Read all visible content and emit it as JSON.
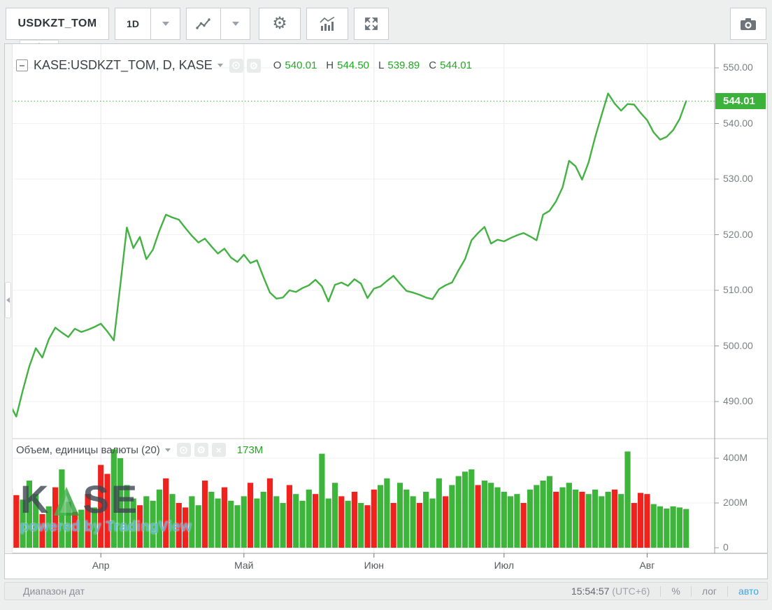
{
  "toolbar": {
    "symbol": "USDKZT_TOM",
    "interval": "1D"
  },
  "main_legend": {
    "title": "KASE:USDKZT_TOM, D, KASE",
    "ohlc": [
      {
        "k": "O",
        "v": "540.01"
      },
      {
        "k": "H",
        "v": "544.50"
      },
      {
        "k": "L",
        "v": "539.89"
      },
      {
        "k": "C",
        "v": "544.01"
      }
    ]
  },
  "volume_legend": {
    "title": "Объем, единицы валюты (20)",
    "current": "173M"
  },
  "watermark": {
    "brand_k": "K",
    "brand_se": "SE",
    "powered": "powered by TradingView"
  },
  "price_axis_last": "544.01",
  "status_bar": {
    "range_label": "Диапазон дат",
    "clock": "15:54:57",
    "utc": "(UTC+6)",
    "percent": "%",
    "log": "лог",
    "auto": "авто"
  },
  "chart_data": {
    "type": "line",
    "symbol": "KASE:USDKZT_TOM",
    "timeframe": "D",
    "exchange": "KASE",
    "title": "KASE:USDKZT_TOM, D, KASE",
    "ohlc": {
      "open": 540.01,
      "high": 544.5,
      "low": 539.89,
      "close": 544.01
    },
    "last_price": 544.01,
    "price_gridlines": [
      550,
      540,
      530,
      520,
      510,
      500,
      490
    ],
    "price_ylim": [
      486,
      552
    ],
    "volume_gridlines_m": [
      400,
      200,
      0
    ],
    "volume_axis_labels": [
      "400M",
      "200M",
      "0"
    ],
    "volume_ylim_m": [
      0,
      450
    ],
    "volume_ma_length": 20,
    "current_volume_label": "173M",
    "grid": true,
    "months": [
      {
        "label": "Апр",
        "day": 14
      },
      {
        "label": "Май",
        "day": 36
      },
      {
        "label": "Июн",
        "day": 56
      },
      {
        "label": "Июл",
        "day": 76
      },
      {
        "label": "Авг",
        "day": 98
      }
    ],
    "prices": [
      489.5,
      487.3,
      492,
      496.3,
      499.6,
      497.9,
      501.2,
      503.3,
      502.4,
      501.6,
      503.1,
      502.5,
      502.9,
      503.4,
      504,
      502.6,
      501,
      511,
      521.3,
      517.6,
      519.6,
      515.6,
      517.3,
      520.7,
      523.6,
      523.1,
      522.7,
      521.2,
      519.8,
      518.6,
      519.3,
      517.9,
      516.6,
      517.5,
      515.9,
      515.1,
      516.4,
      514.9,
      515.4,
      512.4,
      509.6,
      508.5,
      508.7,
      510,
      509.7,
      510.4,
      510.9,
      511.9,
      510.7,
      508,
      511,
      511.4,
      510.8,
      512,
      511.2,
      508.6,
      510.3,
      510.7,
      511.7,
      512.6,
      511.2,
      509.9,
      509.6,
      509.2,
      508.7,
      508.4,
      510.2,
      510.9,
      511.4,
      513.6,
      515.6,
      519,
      520.3,
      521.4,
      518.4,
      519.1,
      518.8,
      519.4,
      519.9,
      520.3,
      519.7,
      519,
      523.6,
      524.3,
      526,
      528.5,
      533.3,
      532.3,
      529.9,
      533,
      537.5,
      541.5,
      545.4,
      543.6,
      542.3,
      543.5,
      543.4,
      541.9,
      540.6,
      538.4,
      537.1,
      537.6,
      538.8,
      540.8,
      544.01
    ],
    "volumes_m": [
      265,
      235,
      215,
      300,
      240,
      150,
      185,
      270,
      350,
      205,
      160,
      170,
      240,
      180,
      370,
      330,
      440,
      400,
      280,
      220,
      190,
      230,
      210,
      260,
      310,
      240,
      200,
      180,
      230,
      190,
      300,
      250,
      220,
      270,
      210,
      190,
      230,
      290,
      220,
      250,
      310,
      230,
      200,
      280,
      240,
      210,
      260,
      240,
      420,
      220,
      290,
      230,
      210,
      250,
      200,
      190,
      260,
      280,
      310,
      200,
      290,
      260,
      230,
      200,
      250,
      220,
      310,
      230,
      280,
      320,
      340,
      350,
      280,
      300,
      290,
      270,
      250,
      230,
      240,
      200,
      260,
      280,
      300,
      320,
      250,
      270,
      290,
      260,
      250,
      240,
      260,
      230,
      250,
      260,
      240,
      430,
      200,
      245,
      240,
      195,
      185,
      175,
      185,
      180,
      173
    ],
    "volume_colors": [
      "rrgggrgrggrgrg",
      "rrggggrgggrgrrggrggrgg",
      "grggrggrgggrgggrgrgr",
      "rggrgggrgggrggggrggg",
      "gggrggggrgggrggggrggrr",
      "rgggggg"
    ],
    "colors": {
      "line": "#43b243",
      "volume_up": "#3db43a",
      "volume_down": "#ef221e",
      "last_price_bg": "#3bb33b",
      "value_green": "#22a822",
      "auto_blue": "#35a7f0"
    }
  }
}
